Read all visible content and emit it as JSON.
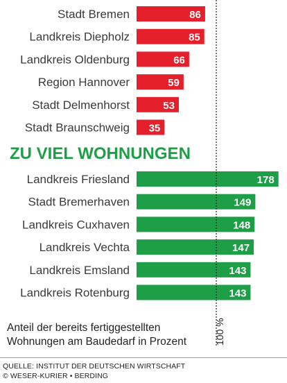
{
  "chart_data": {
    "type": "bar",
    "orientation": "horizontal",
    "reference_line": {
      "value": 100,
      "label": "100 %"
    },
    "groups": [
      {
        "title": "",
        "color": "#e3202b",
        "categories": [
          "Stadt Bremen",
          "Landkreis Diepholz",
          "Landkreis Oldenburg",
          "Region Hannover",
          "Stadt Delmenhorst",
          "Stadt Braunschweig"
        ],
        "values": [
          86,
          85,
          66,
          59,
          53,
          35
        ]
      },
      {
        "title": "ZU VIEL WOHNUNGEN",
        "color": "#1f9e48",
        "categories": [
          "Landkreis Friesland",
          "Stadt Bremerhaven",
          "Landkreis Cuxhaven",
          "Landkreis Vechta",
          "Landkreis Emsland",
          "Landkreis Rotenburg"
        ],
        "values": [
          178,
          149,
          148,
          147,
          143,
          143
        ]
      }
    ],
    "note": "Anteil der bereits fertiggestellten\nWohnungen am Baudedarf in Prozent"
  },
  "source": {
    "line1": "QUELLE: INSTITUT DER DEUTSCHEN WIRTSCHAFT",
    "line2": "© WESER-KURIER • BERDING"
  }
}
